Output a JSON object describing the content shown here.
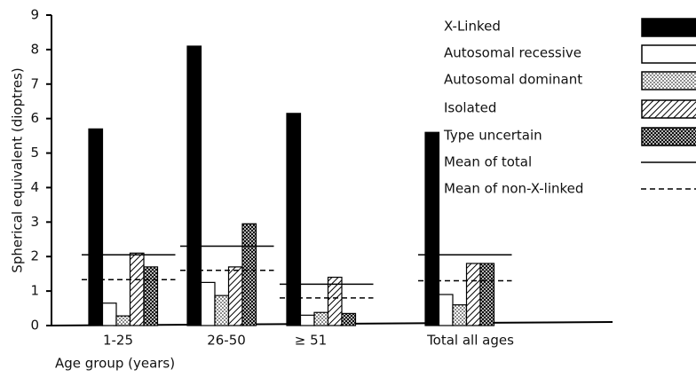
{
  "chart_data": {
    "type": "bar",
    "ylabel": "Spherical equivalent (dioptres)",
    "xlabel": "Age group  (years)",
    "categories": [
      "1-25",
      "26-50",
      "≥ 51",
      "Total all ages"
    ],
    "ylim": [
      0,
      9
    ],
    "yticks": [
      0,
      1,
      2,
      3,
      4,
      5,
      6,
      7,
      8,
      9
    ],
    "series": [
      {
        "name": "X-Linked",
        "pattern": "solid",
        "values": [
          5.7,
          8.1,
          6.15,
          5.6
        ]
      },
      {
        "name": "Autosomal recessive",
        "pattern": "white",
        "values": [
          0.65,
          1.25,
          0.3,
          0.9
        ]
      },
      {
        "name": "Autosomal dominant",
        "pattern": "dots",
        "values": [
          0.28,
          0.87,
          0.38,
          0.6
        ]
      },
      {
        "name": "Isolated",
        "pattern": "hatch",
        "values": [
          2.1,
          1.7,
          1.4,
          1.8
        ]
      },
      {
        "name": "Type uncertain",
        "pattern": "cross",
        "values": [
          1.7,
          2.95,
          0.35,
          1.8
        ]
      }
    ],
    "lines": [
      {
        "name": "Mean of total",
        "dash": "solid",
        "values": [
          2.05,
          2.3,
          1.2,
          2.05
        ]
      },
      {
        "name": "Mean of non-X-linked",
        "dash": "dashed",
        "values": [
          1.33,
          1.6,
          0.8,
          1.3
        ]
      }
    ]
  }
}
